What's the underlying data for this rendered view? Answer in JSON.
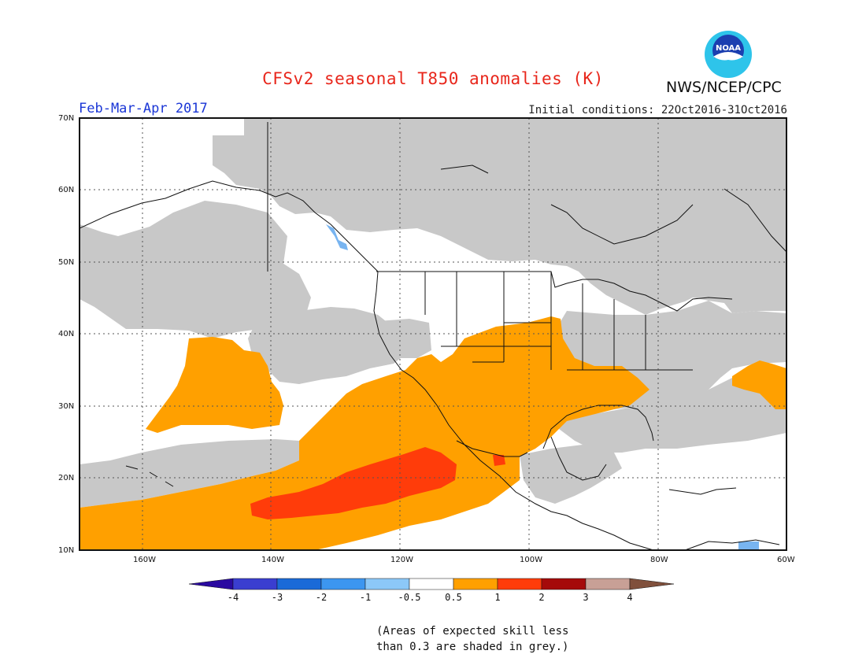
{
  "title": "CFSv2 seasonal T850 anomalies (K)",
  "organization": "NWS/NCEP/CPC",
  "logo_text": "NOAA",
  "season": "Feb-Mar-Apr 2017",
  "initial_conditions": "Initial conditions: 22Oct2016-31Oct2016",
  "lat_labels": [
    "70N",
    "60N",
    "50N",
    "40N",
    "30N",
    "20N",
    "10N"
  ],
  "lon_labels": [
    "160W",
    "140W",
    "120W",
    "100W",
    "80W",
    "60W"
  ],
  "colorbar": {
    "labels": [
      "-4",
      "-3",
      "-2",
      "-1",
      "-0.5",
      "0.5",
      "1",
      "2",
      "3",
      "4"
    ],
    "colors": [
      "#2a0aa0",
      "#3a3ed0",
      "#1a6ad8",
      "#3c96f0",
      "#8cc8f8",
      "#ffffff",
      "#ffa000",
      "#ff3c0a",
      "#a50a0a",
      "#c8a096",
      "#80503c"
    ]
  },
  "footnote_line1": "(Areas of expected skill less",
  "footnote_line2": "than 0.3 are shaded in grey.)",
  "colors": {
    "skill_grey": "#c8c8c8",
    "anom_orange": "#ffa000",
    "anom_red": "#ff3c0a",
    "title_red": "#e8261b",
    "season_blue": "#1a36d6"
  }
}
